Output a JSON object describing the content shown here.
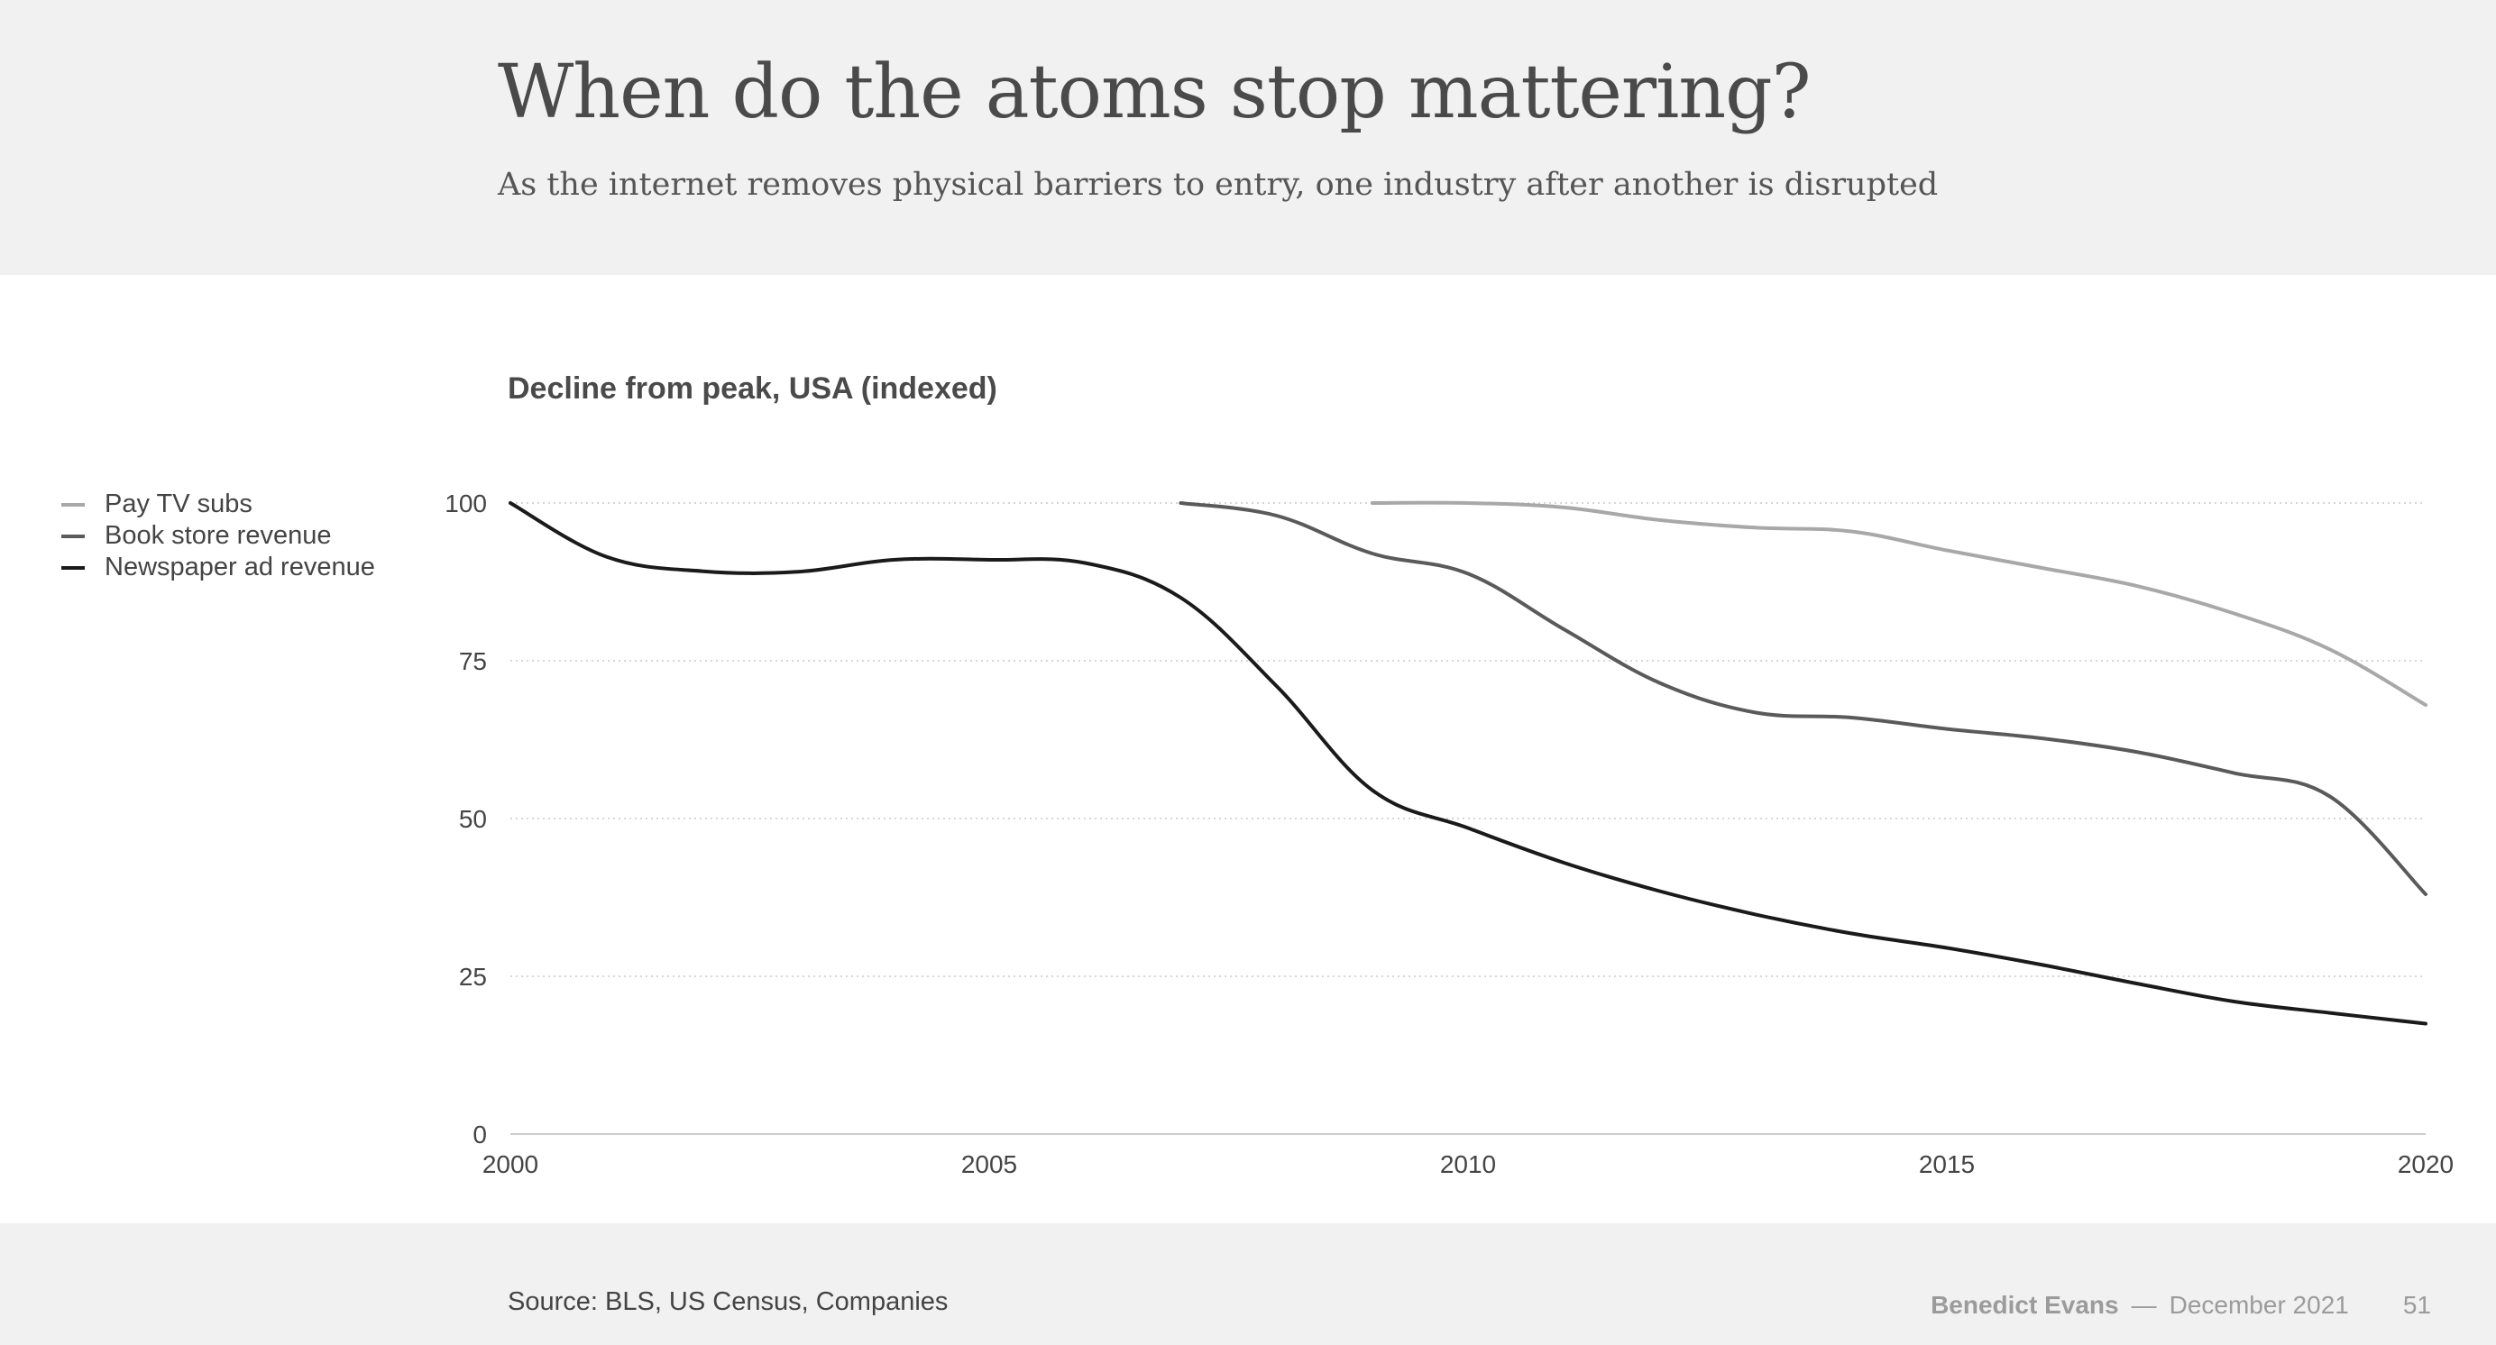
{
  "header": {
    "title": "When do the atoms stop mattering?",
    "subtitle": "As the internet removes physical barriers to entry, one industry after another is disrupted"
  },
  "footer": {
    "source": "Source: BLS, US Census, Companies",
    "author": "Benedict Evans",
    "separator": "—",
    "date": "December 2021",
    "page_number": "51"
  },
  "chart_data": {
    "type": "line",
    "title": "Decline from peak, USA (indexed)",
    "xlabel": "",
    "ylabel": "",
    "xlim": [
      2000,
      2020
    ],
    "ylim": [
      0,
      100
    ],
    "x_ticks": [
      "2000",
      "2005",
      "2010",
      "2015",
      "2020"
    ],
    "y_ticks": [
      "0",
      "25",
      "50",
      "75",
      "100"
    ],
    "grid": "horizontal dotted",
    "legend_position": "left",
    "series": [
      {
        "name": "Pay TV subs",
        "color": "#a8a8a8",
        "x": [
          2009,
          2010,
          2011,
          2012,
          2013,
          2014,
          2015,
          2016,
          2017,
          2018,
          2019,
          2020
        ],
        "values": [
          100,
          100,
          99.3,
          97.3,
          96.1,
          95.5,
          92.5,
          89.7,
          86.8,
          82.5,
          76.8,
          68
        ]
      },
      {
        "name": "Book store revenue",
        "color": "#5a5a5a",
        "x": [
          2007,
          2008,
          2009,
          2010,
          2011,
          2012,
          2013,
          2014,
          2015,
          2016,
          2017,
          2018,
          2019,
          2020
        ],
        "values": [
          100,
          98,
          92,
          88.8,
          80,
          71.5,
          66.8,
          66,
          64.2,
          62.7,
          60.5,
          57.2,
          53.5,
          38
        ]
      },
      {
        "name": "Newspaper ad revenue",
        "color": "#1a1a1a",
        "x": [
          2000,
          2001,
          2002,
          2003,
          2004,
          2005,
          2006,
          2007,
          2008,
          2009,
          2010,
          2011,
          2012,
          2013,
          2014,
          2015,
          2016,
          2017,
          2018,
          2019,
          2020
        ],
        "values": [
          100,
          91.5,
          89.2,
          89.1,
          91,
          91,
          90.5,
          85,
          71,
          54.5,
          48.5,
          43,
          38.5,
          34.8,
          31.8,
          29.5,
          26.8,
          23.8,
          21,
          19.2,
          17.5
        ]
      }
    ]
  }
}
